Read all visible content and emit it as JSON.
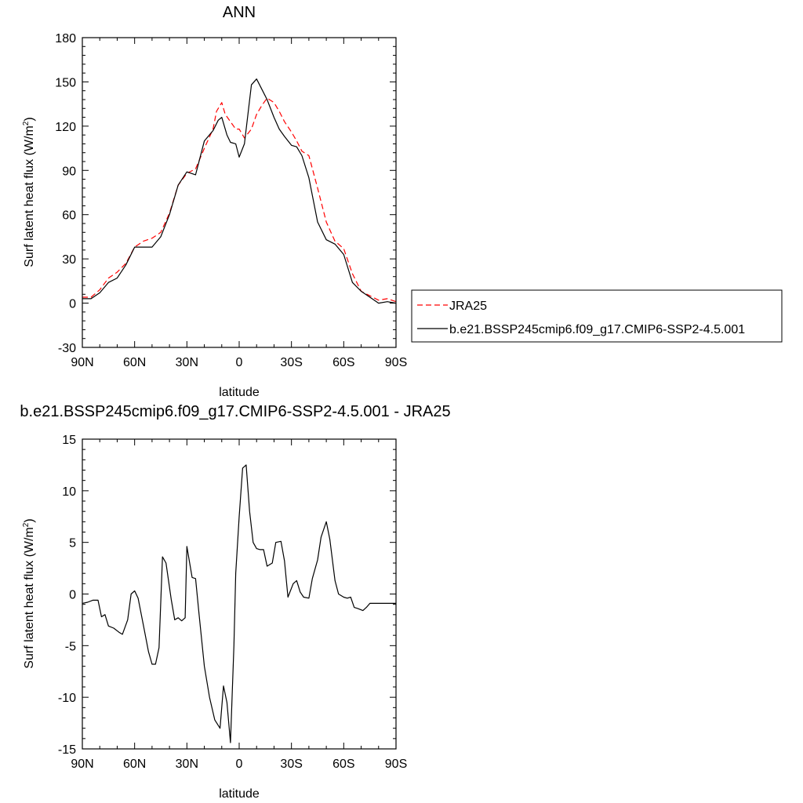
{
  "chart_data": [
    {
      "type": "line",
      "title": "ANN",
      "xlabel": "latitude",
      "ylabel": "Surf latent heat flux (W/m",
      "ylabel_sup": "2",
      "ylabel_close": ")",
      "xlim": [
        90,
        -90
      ],
      "ylim": [
        -30,
        180
      ],
      "yticks": [
        -30,
        0,
        30,
        60,
        90,
        120,
        150,
        180
      ],
      "xticks": [
        {
          "value": 90,
          "label": "90N"
        },
        {
          "value": 60,
          "label": "60N"
        },
        {
          "value": 30,
          "label": "30N"
        },
        {
          "value": 0,
          "label": "0"
        },
        {
          "value": -30,
          "label": "30S"
        },
        {
          "value": -60,
          "label": "60S"
        },
        {
          "value": -90,
          "label": "90S"
        }
      ],
      "legend": {
        "placement": "right"
      },
      "series": [
        {
          "name": "JRA25",
          "color": "#ff0000",
          "dash": "dashed",
          "x": [
            90,
            85,
            80,
            75,
            70,
            65,
            60,
            55,
            50,
            45,
            40,
            35,
            30,
            25,
            20,
            15,
            13,
            10,
            8,
            5,
            2,
            0,
            -3,
            -7,
            -10,
            -13,
            -16,
            -20,
            -23,
            -26,
            -30,
            -33,
            -36,
            -40,
            -45,
            -50,
            -55,
            -60,
            -65,
            -70,
            -75,
            -80,
            -85,
            -90
          ],
          "y": [
            4,
            4,
            9,
            17,
            21,
            27,
            38,
            42,
            44,
            48,
            61,
            80,
            88,
            91,
            105,
            118,
            130,
            136,
            128,
            123,
            118,
            118,
            112,
            118,
            128,
            134,
            139,
            136,
            130,
            123,
            116,
            110,
            103,
            100,
            78,
            55,
            42,
            37,
            20,
            8,
            5,
            2,
            3,
            1
          ]
        },
        {
          "name": "b.e21.BSSP245cmip6.f09_g17.CMIP6-SSP2-4.5.001",
          "color": "#000000",
          "dash": "solid",
          "x": [
            90,
            85,
            80,
            75,
            70,
            65,
            60,
            55,
            50,
            45,
            40,
            35,
            30,
            25,
            20,
            15,
            12,
            10,
            7,
            5,
            2,
            0,
            -3,
            -7,
            -10,
            -13,
            -16,
            -20,
            -23,
            -26,
            -30,
            -33,
            -36,
            -40,
            -45,
            -50,
            -55,
            -60,
            -65,
            -70,
            -75,
            -80,
            -85,
            -90
          ],
          "y": [
            3,
            3,
            7,
            14,
            17,
            26,
            38,
            38,
            38,
            45,
            60,
            80,
            89,
            87,
            110,
            117,
            124,
            126,
            114,
            109,
            108,
            99,
            108,
            148,
            152,
            145,
            138,
            126,
            118,
            113,
            107,
            106,
            100,
            85,
            55,
            43,
            40,
            33,
            14,
            8,
            4,
            0,
            1,
            0
          ]
        }
      ]
    },
    {
      "type": "line",
      "title": "b.e21.BSSP245cmip6.f09_g17.CMIP6-SSP2-4.5.001 - JRA25",
      "xlabel": "latitude",
      "ylabel": "Surf latent heat flux (W/m",
      "ylabel_sup": "2",
      "ylabel_close": ")",
      "xlim": [
        90,
        -90
      ],
      "ylim": [
        -15,
        15
      ],
      "yticks": [
        -15,
        -10,
        -5,
        0,
        5,
        10,
        15
      ],
      "xticks": [
        {
          "value": 90,
          "label": "90N"
        },
        {
          "value": 60,
          "label": "60N"
        },
        {
          "value": 30,
          "label": "30N"
        },
        {
          "value": 0,
          "label": "0"
        },
        {
          "value": -30,
          "label": "30S"
        },
        {
          "value": -60,
          "label": "60S"
        },
        {
          "value": -90,
          "label": "90S"
        }
      ],
      "series": [
        {
          "color": "#000000",
          "dash": "solid",
          "x": [
            90,
            87,
            84,
            81,
            79,
            77,
            75,
            72,
            69,
            67,
            64,
            62,
            60,
            58,
            55,
            52,
            50,
            48,
            46,
            44,
            42,
            39,
            37,
            35,
            33,
            31,
            30,
            27,
            25,
            23,
            20,
            17,
            14,
            11,
            9,
            7,
            5,
            3,
            2,
            0,
            -2,
            -4,
            -6,
            -8,
            -10,
            -12,
            -14,
            -16,
            -19,
            -21,
            -24,
            -26,
            -28,
            -31,
            -33,
            -35,
            -37,
            -40,
            -42,
            -45,
            -47,
            -50,
            -52,
            -55,
            -57,
            -60,
            -62,
            -64,
            -66,
            -68,
            -71,
            -73,
            -75,
            -78,
            -80,
            -83,
            -85,
            -88,
            -90
          ],
          "y": [
            -0.9,
            -0.8,
            -0.6,
            -0.6,
            -2.2,
            -2.0,
            -3.1,
            -3.3,
            -3.7,
            -3.9,
            -2.5,
            0.0,
            0.3,
            -0.4,
            -3.0,
            -5.6,
            -6.8,
            -6.8,
            -5.2,
            3.6,
            3.0,
            -0.5,
            -2.5,
            -2.3,
            -2.6,
            -2.3,
            4.6,
            1.6,
            1.5,
            -2.0,
            -7.0,
            -10.0,
            -12.2,
            -13.0,
            -8.9,
            -10.5,
            -14.4,
            -5.0,
            2.0,
            7.5,
            12.2,
            12.5,
            8.0,
            5.0,
            4.4,
            4.3,
            4.3,
            2.7,
            3.0,
            5.0,
            5.1,
            3.2,
            -0.3,
            1.0,
            1.3,
            0.2,
            -0.3,
            -0.4,
            1.5,
            3.3,
            5.5,
            7.0,
            5.3,
            1.3,
            0.0,
            -0.3,
            -0.4,
            -0.3,
            -1.3,
            -1.4,
            -1.6,
            -1.3,
            -0.9,
            -0.9,
            -0.9,
            -0.9,
            -0.9,
            -0.9,
            -0.9
          ]
        }
      ]
    }
  ]
}
